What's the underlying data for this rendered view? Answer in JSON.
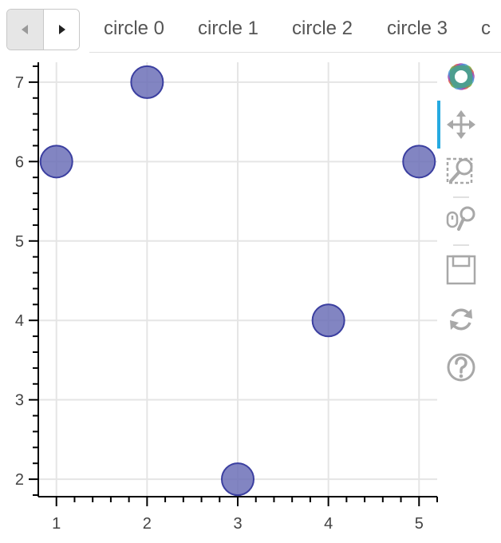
{
  "tabs": {
    "items": [
      {
        "label": "circle 0"
      },
      {
        "label": "circle 1"
      },
      {
        "label": "circle 2"
      },
      {
        "label": "circle 3"
      },
      {
        "label": "c"
      }
    ]
  },
  "toolbar": {
    "tools": [
      {
        "name": "bokeh-logo-icon"
      },
      {
        "name": "pan-icon",
        "active": true
      },
      {
        "name": "box-zoom-icon"
      },
      {
        "name": "wheel-zoom-icon"
      },
      {
        "name": "save-icon"
      },
      {
        "name": "reset-icon"
      },
      {
        "name": "help-icon"
      }
    ]
  },
  "colors": {
    "marker_fill": "#6c70b7",
    "marker_line": "#3b3fa0",
    "grid": "#e5e5e5",
    "axis": "#000000",
    "active_tool": "#26aae1"
  },
  "chart_data": {
    "type": "scatter",
    "title": "",
    "xlabel": "",
    "ylabel": "",
    "x": [
      1,
      2,
      3,
      4,
      5
    ],
    "y": [
      6,
      7,
      2,
      4,
      6
    ],
    "xlim": [
      0.8,
      5.2
    ],
    "ylim": [
      1.78,
      7.25
    ],
    "xticks": [
      1,
      2,
      3,
      4,
      5
    ],
    "yticks": [
      2,
      3,
      4,
      5,
      6,
      7
    ],
    "xtick_labels": [
      "1",
      "2",
      "3",
      "4",
      "5"
    ],
    "ytick_labels": [
      "2",
      "3",
      "4",
      "5",
      "6",
      "7"
    ],
    "grid": true,
    "legend": "none"
  }
}
